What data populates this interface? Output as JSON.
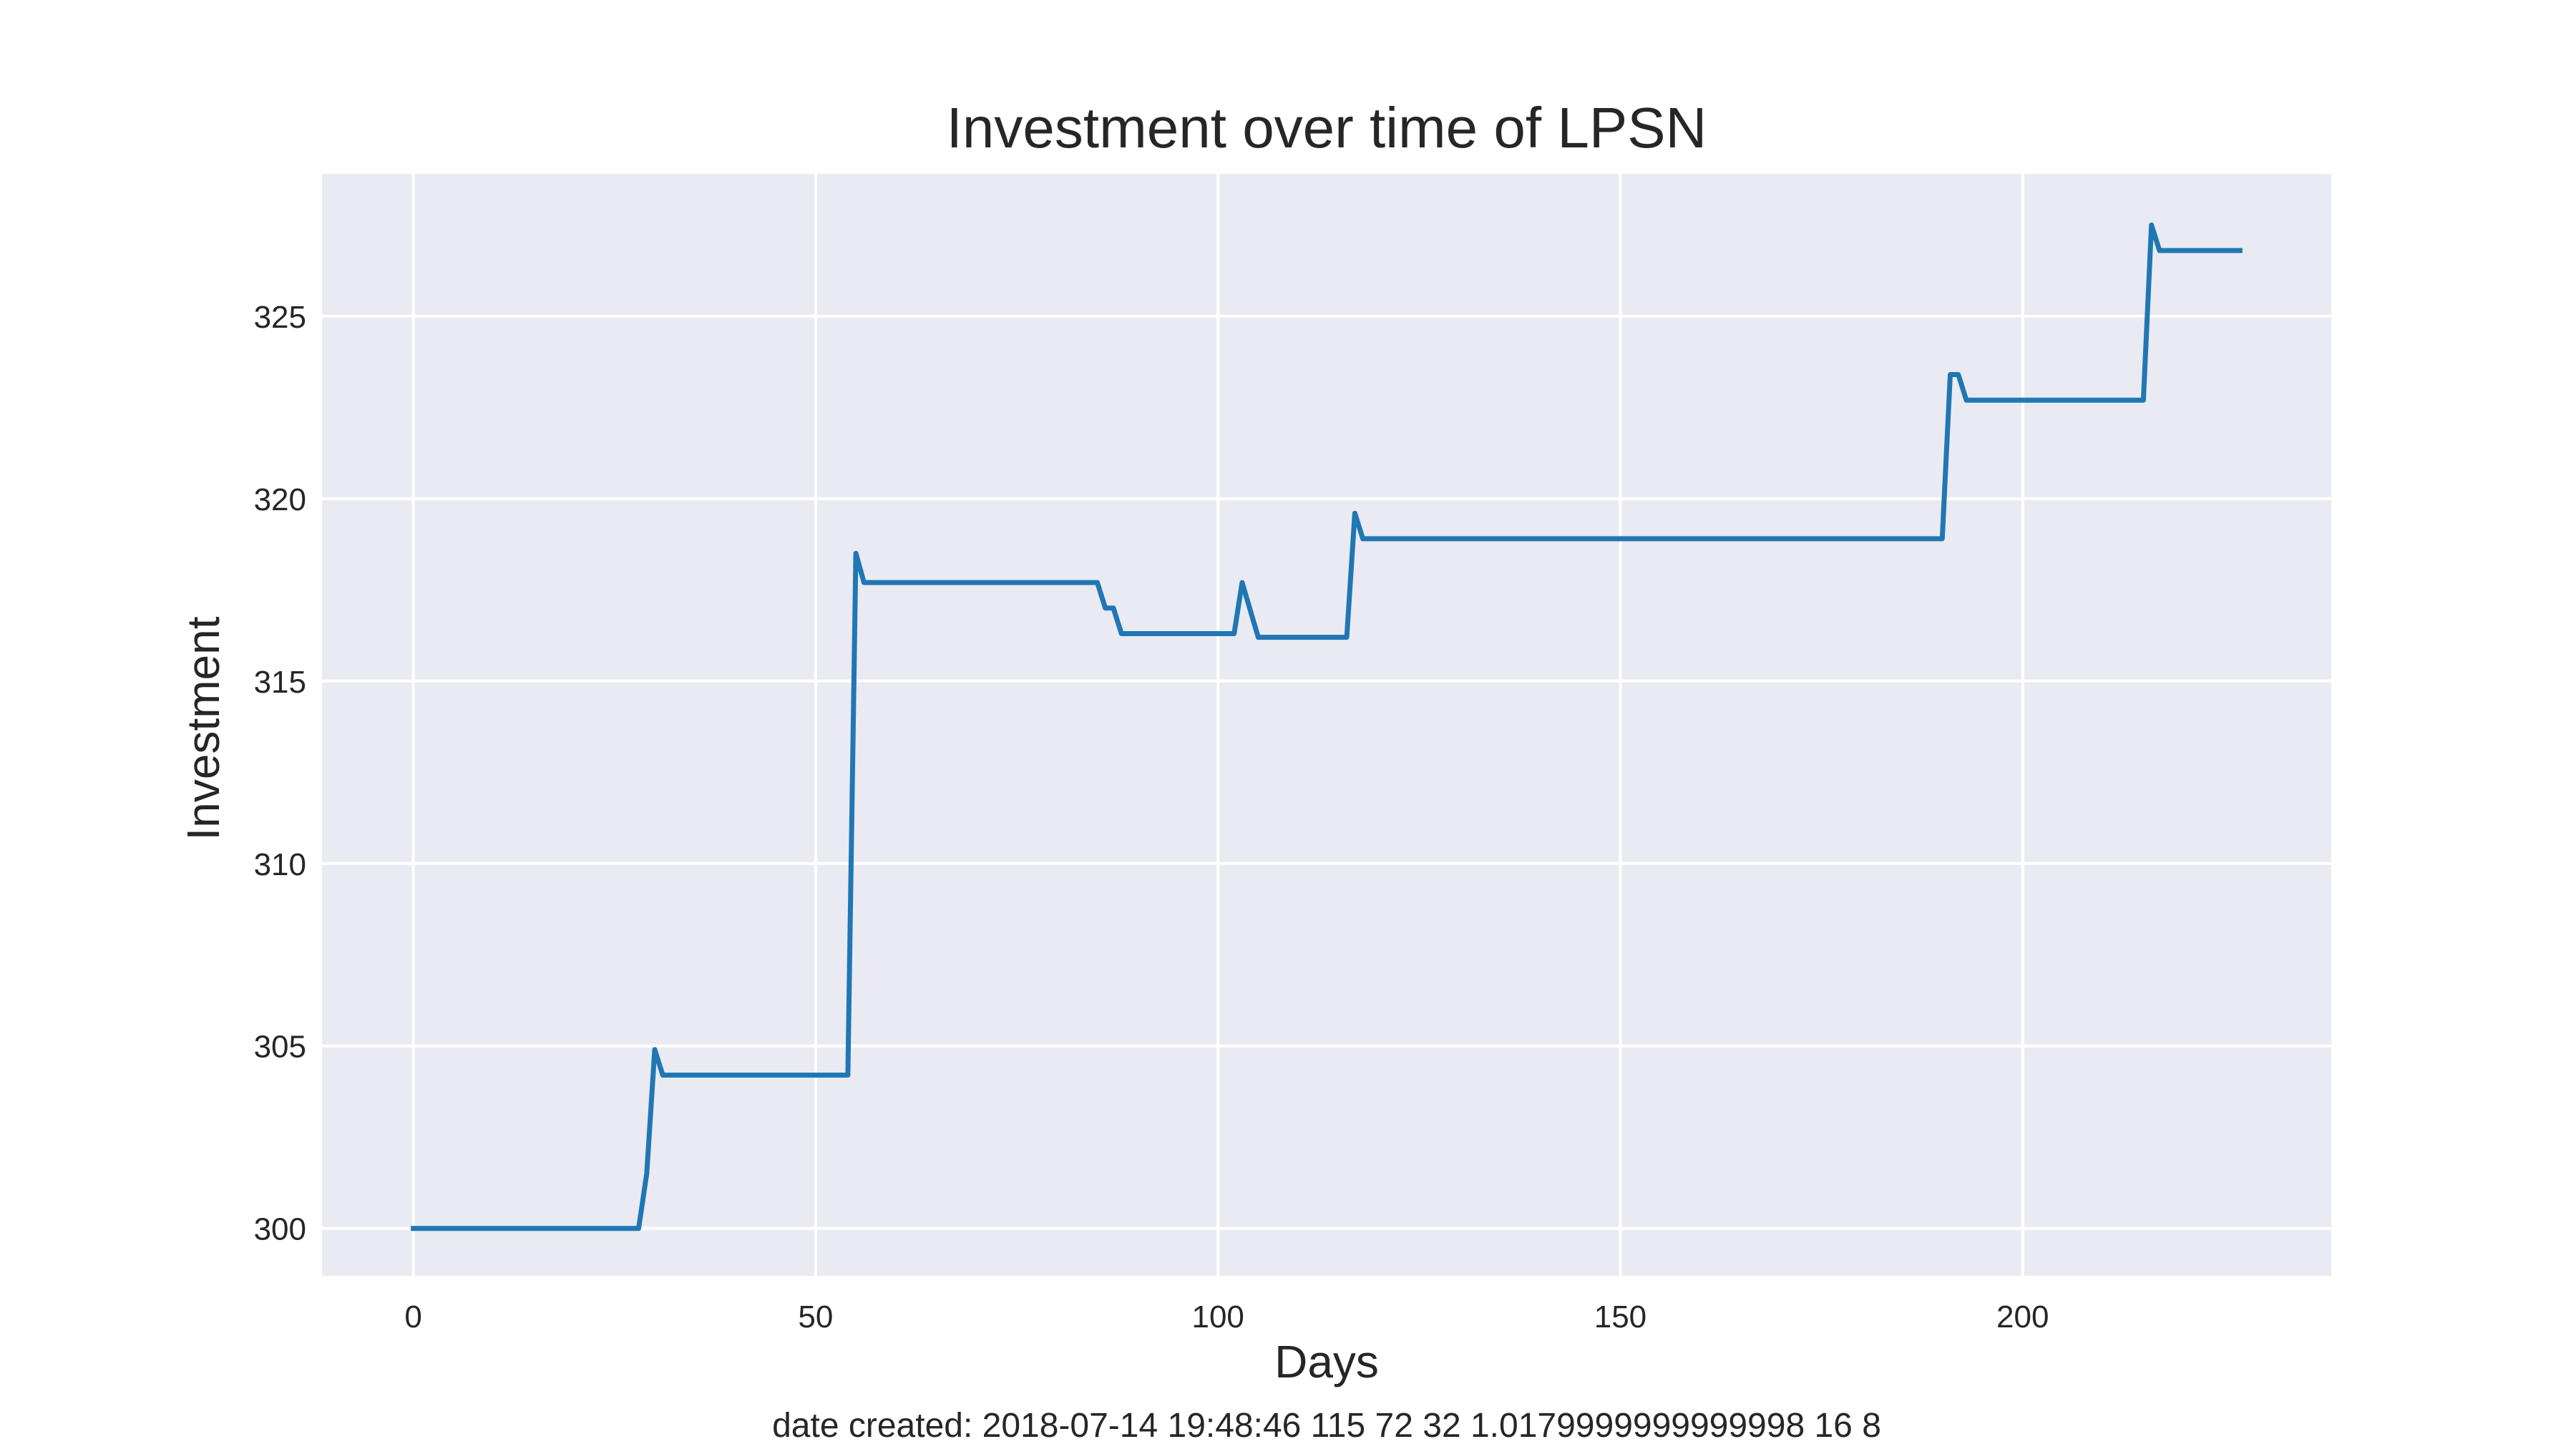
{
  "chart_data": {
    "type": "line",
    "title": "Investment over time of LPSN",
    "xlabel": "Days",
    "ylabel": "Investment",
    "footer": "date created: 2018-07-14 19:48:46 115 72 32 1.0179999999999998 16 8",
    "xlim": [
      -11.35,
      238.35
    ],
    "ylim": [
      298.7,
      328.9
    ],
    "xticks": [
      0,
      50,
      100,
      150,
      200
    ],
    "yticks": [
      300,
      305,
      310,
      315,
      320,
      325
    ],
    "xtick_labels": [
      "0",
      "50",
      "100",
      "150",
      "200"
    ],
    "ytick_labels": [
      "300",
      "305",
      "310",
      "315",
      "320",
      "325"
    ],
    "grid": true,
    "style": "seaborn-darkgrid",
    "colors": {
      "plot_background": "#eaeaf2",
      "grid": "#ffffff",
      "line": "#1f77b4",
      "text": "#262626"
    },
    "series": [
      {
        "x": [
          0,
          28,
          29,
          30,
          31,
          54,
          55,
          56,
          85,
          86,
          87,
          88,
          102,
          103,
          105,
          116,
          117,
          118,
          190,
          191,
          192,
          193,
          215,
          216,
          217,
          227
        ],
        "y": [
          300.0,
          300.0,
          301.5,
          304.9,
          304.2,
          304.2,
          318.5,
          317.7,
          317.7,
          317.0,
          317.0,
          316.3,
          316.3,
          317.7,
          316.2,
          316.2,
          319.6,
          318.9,
          318.9,
          323.4,
          323.4,
          322.7,
          322.7,
          327.5,
          326.8,
          326.8
        ]
      }
    ]
  }
}
